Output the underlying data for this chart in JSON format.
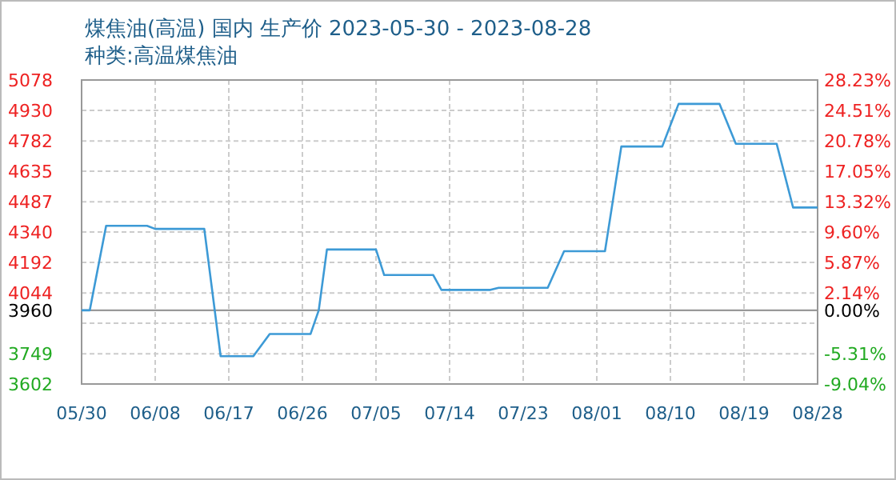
{
  "chart_data": {
    "type": "line",
    "title": "煤焦油(高温) 国内 生产价 2023-05-30 - 2023-08-28",
    "subtitle": "种类:高温煤焦油",
    "x": [
      "2023-05-30",
      "2023-05-31",
      "2023-06-02",
      "2023-06-07",
      "2023-06-08",
      "2023-06-14",
      "2023-06-16",
      "2023-06-20",
      "2023-06-22",
      "2023-06-27",
      "2023-06-28",
      "2023-06-29",
      "2023-07-05",
      "2023-07-06",
      "2023-07-12",
      "2023-07-13",
      "2023-07-19",
      "2023-07-20",
      "2023-07-26",
      "2023-07-28",
      "2023-08-02",
      "2023-08-04",
      "2023-08-09",
      "2023-08-11",
      "2023-08-16",
      "2023-08-18",
      "2023-08-23",
      "2023-08-25",
      "2023-08-28"
    ],
    "series": [
      {
        "color": "#3d9ad6",
        "values": [
          3960,
          3960,
          4370,
          4370,
          4355,
          4355,
          3737,
          3737,
          3845,
          3845,
          3960,
          4255,
          4255,
          4131,
          4131,
          4059,
          4059,
          4069,
          4069,
          4247,
          4247,
          4755,
          4755,
          4962,
          4962,
          4768,
          4768,
          4459,
          4459
        ]
      }
    ],
    "xlim": [
      "2023-05-30",
      "2023-08-28"
    ],
    "xticks": [
      {
        "value": "2023-05-30",
        "label": "05/30"
      },
      {
        "value": "2023-06-08",
        "label": "06/08"
      },
      {
        "value": "2023-06-17",
        "label": "06/17"
      },
      {
        "value": "2023-06-26",
        "label": "06/26"
      },
      {
        "value": "2023-07-05",
        "label": "07/05"
      },
      {
        "value": "2023-07-14",
        "label": "07/14"
      },
      {
        "value": "2023-07-23",
        "label": "07/23"
      },
      {
        "value": "2023-08-01",
        "label": "08/01"
      },
      {
        "value": "2023-08-10",
        "label": "08/10"
      },
      {
        "value": "2023-08-19",
        "label": "08/19"
      },
      {
        "value": "2023-08-28",
        "label": "08/28"
      }
    ],
    "ylim": [
      3602,
      5078
    ],
    "yticks": [
      5078,
      4930,
      4782,
      4635,
      4487,
      4340,
      4192,
      4044,
      3960,
      {
        "value": 3897,
        "label": null
      },
      3749,
      3602
    ],
    "y2lim": [
      -9.04,
      28.23
    ],
    "y2ticks": [
      {
        "value": 28.23,
        "label": "28.23%"
      },
      {
        "value": 24.51,
        "label": "24.51%"
      },
      {
        "value": 20.78,
        "label": "20.78%"
      },
      {
        "value": 17.05,
        "label": "17.05%"
      },
      {
        "value": 13.32,
        "label": "13.32%"
      },
      {
        "value": 9.6,
        "label": "9.60%"
      },
      {
        "value": 5.87,
        "label": "5.87%"
      },
      {
        "value": 2.14,
        "label": "2.14%"
      },
      {
        "value": 0,
        "label": "0.00%"
      },
      {
        "value": -5.31,
        "label": "-5.31%"
      },
      {
        "value": -9.04,
        "label": "-9.04%"
      }
    ],
    "ref_lines": [
      {
        "axis": "y",
        "value": 3960,
        "label": null,
        "color": "#999999"
      }
    ],
    "grid": true
  }
}
